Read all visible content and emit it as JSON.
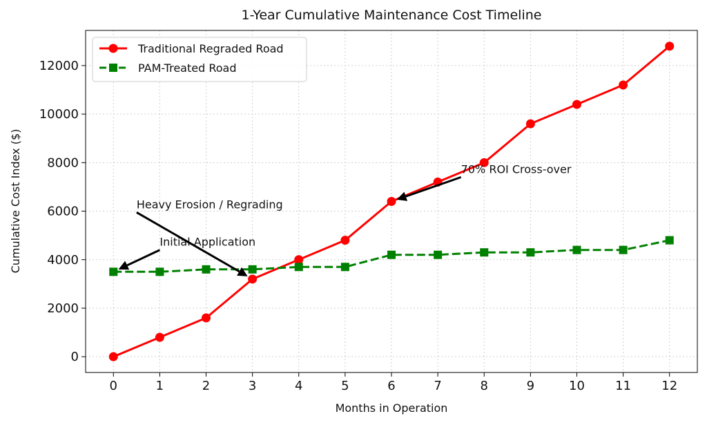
{
  "chart_data": {
    "type": "line",
    "title": "1-Year Cumulative Maintenance Cost Timeline",
    "xlabel": "Months in Operation",
    "ylabel": "Cumulative Cost Index ($)",
    "x": [
      0,
      1,
      2,
      3,
      4,
      5,
      6,
      7,
      8,
      9,
      10,
      11,
      12
    ],
    "xlim": [
      -0.6,
      12.6
    ],
    "ylim": [
      -650,
      13450
    ],
    "xticks": [
      0,
      1,
      2,
      3,
      4,
      5,
      6,
      7,
      8,
      9,
      10,
      11,
      12
    ],
    "yticks": [
      0,
      2000,
      4000,
      6000,
      8000,
      10000,
      12000
    ],
    "grid": true,
    "legend_position": "upper-left",
    "series": [
      {
        "name": "Traditional Regraded Road",
        "color": "#ff0000",
        "marker": "circle",
        "linestyle": "solid",
        "values": [
          0,
          800,
          1600,
          3200,
          4000,
          4800,
          6400,
          7200,
          8000,
          9600,
          10400,
          11200,
          12800
        ]
      },
      {
        "name": "PAM-Treated Road",
        "color": "#008000",
        "marker": "square",
        "linestyle": "dashed",
        "values": [
          3500,
          3500,
          3600,
          3600,
          3700,
          3700,
          4200,
          4200,
          4300,
          4300,
          4400,
          4400,
          4800
        ]
      }
    ],
    "annotations": [
      {
        "text": "Initial Application",
        "xy": [
          0,
          3500
        ],
        "xytext": [
          1,
          4400
        ]
      },
      {
        "text": "Heavy Erosion / Regrading",
        "xy": [
          3,
          3200
        ],
        "xytext": [
          0.5,
          5950
        ]
      },
      {
        "text": "70% ROI Cross-over",
        "xy": [
          6,
          6400
        ],
        "xytext": [
          7.5,
          7400
        ]
      }
    ]
  }
}
